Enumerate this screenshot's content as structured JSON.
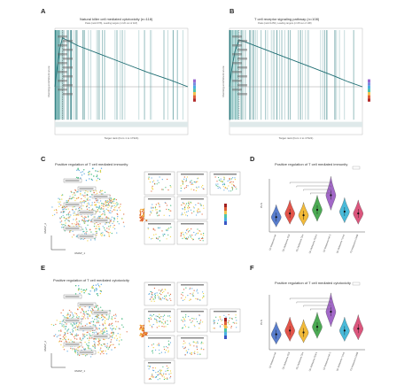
{
  "figure": {
    "panels": {
      "A": {
        "letter": "A",
        "title": "Natural killer cell mediated cytotoxicity (n=118)",
        "subtitle": "Peak (rank=978), Leading targets (n=20 out of 118)"
      },
      "B": {
        "letter": "B",
        "title": "T cell receptor signaling pathway (n=108)",
        "subtitle": "Peak (rank=1256), Leading targets (n=28 out of 108)"
      },
      "C": {
        "letter": "C",
        "title": "Positive regulation of T cell mediated immunity"
      },
      "D": {
        "letter": "D",
        "title": "Positive regulation of T cell mediated immunity"
      },
      "E": {
        "letter": "E",
        "title": "Positive regulation of T cell mediated cytotoxicity"
      },
      "F": {
        "letter": "F",
        "title": "Positive regulation of T cell mediated cytotoxicity"
      }
    },
    "umap": {
      "xlabel": "UMAP_1",
      "ylabel": "UMAP_2"
    },
    "colors": {
      "gsea_line": "#2e8b8b",
      "hits": "#1f6e73",
      "vln": [
        "#4a73c9",
        "#e1473b",
        "#f1b52a",
        "#3da346",
        "#9b5cc4",
        "#3ab5d6",
        "#d94872",
        "#ef7a2c"
      ]
    }
  },
  "chart_data": [
    {
      "type": "line",
      "panel": "A",
      "ylabel": "Running enrichment score",
      "xlabel": "Target rank (from 1 to 17321)",
      "x": [
        0,
        300,
        600,
        978,
        1500,
        3000,
        6000,
        9000,
        12000,
        15000,
        17321
      ],
      "y": [
        0,
        0.2,
        0.38,
        0.5,
        0.48,
        0.42,
        0.33,
        0.24,
        0.15,
        0.07,
        0
      ],
      "ylim": [
        0,
        0.55
      ]
    },
    {
      "type": "line",
      "panel": "B",
      "ylabel": "Running enrichment score",
      "xlabel": "Target rank (from 1 to 17321)",
      "x": [
        0,
        300,
        700,
        1256,
        2000,
        4000,
        7000,
        10000,
        13000,
        15500,
        17321
      ],
      "y": [
        0,
        0.18,
        0.36,
        0.48,
        0.46,
        0.4,
        0.31,
        0.22,
        0.13,
        0.05,
        0
      ],
      "ylim": [
        0,
        0.55
      ]
    },
    {
      "type": "violin",
      "panel": "D",
      "ylabel": "PLS",
      "categories": [
        "CD Melanoma NK",
        "CD Melanoma CD8",
        "CD Melanoma CD4",
        "CD Melanoma CD8-1",
        "CD Melanoma NK-2",
        "CD Melanoma Tumor",
        "CD Melanoma CD8B"
      ],
      "values": [
        0.0,
        0.02,
        0.01,
        0.04,
        0.12,
        0.03,
        0.02
      ]
    },
    {
      "type": "violin",
      "panel": "F",
      "ylabel": "PLS",
      "categories": [
        "CD Melanoma NK",
        "CD Melanoma CD8",
        "CD Melanoma CD4",
        "CD Melanoma CD8-1",
        "CD Melanoma NK-2",
        "CD Melanoma Tumor",
        "CD Melanoma CD8B"
      ],
      "values": [
        0.0,
        0.02,
        0.01,
        0.04,
        0.12,
        0.02,
        0.03
      ]
    }
  ]
}
